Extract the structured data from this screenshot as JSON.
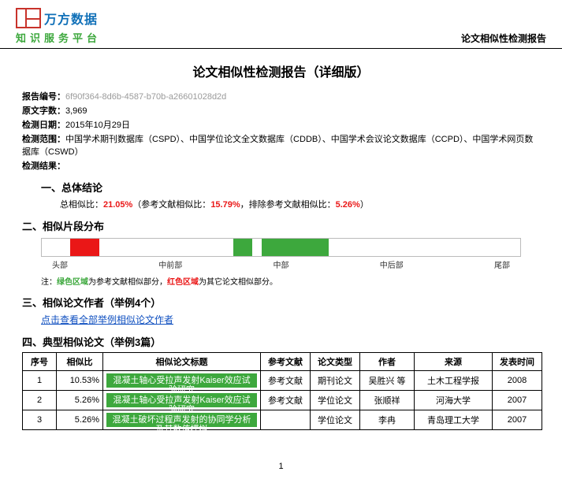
{
  "header": {
    "logo_main": "万方数据",
    "logo_sub": "知识服务平台",
    "right": "论文相似性检测报告"
  },
  "title": "论文相似性检测报告（详细版）",
  "meta": {
    "report_no_label": "报告编号：",
    "report_no": "6f90f364-8d6b-4587-b70b-a26601028d2d",
    "word_count_label": "原文字数：",
    "word_count": "3,969",
    "date_label": "检测日期：",
    "date": "2015年10月29日",
    "scope_label": "检测范围：",
    "scope": "中国学术期刊数据库（CSPD）、中国学位论文全文数据库（CDDB）、中国学术会议论文数据库（CCPD）、中国学术网页数据库（CSWD）",
    "result_label": "检测结果："
  },
  "sec1": {
    "title": "一、总体结论",
    "line_pre": "总相似比：",
    "total": "21.05%",
    "mid": "（参考文献相似比：",
    "ref": "15.79%",
    "mid2": "，排除参考文献相似比：",
    "excl": "5.26%",
    "end": "）"
  },
  "sec2": {
    "title": "二、相似片段分布",
    "labels": [
      "头部",
      "中前部",
      "中部",
      "中后部",
      "尾部"
    ],
    "segments": [
      {
        "w": 6,
        "color": "#ffffff"
      },
      {
        "w": 6,
        "color": "#ea1717"
      },
      {
        "w": 28,
        "color": "#ffffff"
      },
      {
        "w": 4,
        "color": "#3da83d"
      },
      {
        "w": 2,
        "color": "#ffffff"
      },
      {
        "w": 14,
        "color": "#3da83d"
      },
      {
        "w": 40,
        "color": "#ffffff"
      }
    ],
    "note_1": "注：",
    "note_g": "绿色区域",
    "note_2": "为参考文献相似部分，",
    "note_r": "红色区域",
    "note_3": "为其它论文相似部分。"
  },
  "sec3": {
    "title": "三、相似论文作者（举例4个）",
    "link": "点击查看全部举例相似论文作者"
  },
  "sec4": {
    "title": "四、典型相似论文（举例3篇）",
    "cols": [
      "序号",
      "相似比",
      "相似论文标题",
      "参考文献",
      "论文类型",
      "作者",
      "来源",
      "发表时间"
    ],
    "rows": [
      {
        "idx": "1",
        "ratio": "10.53%",
        "t": "混凝土轴心受拉声发射Kaiser效应试验研究",
        "ref": "参考文献",
        "type": "期刊论文",
        "author": "吴胜兴 等",
        "src": "土木工程学报",
        "year": "2008"
      },
      {
        "idx": "2",
        "ratio": "5.26%",
        "t": "混凝土轴心受拉声发射Kaiser效应试验研究",
        "ref": "参考文献",
        "type": "学位论文",
        "author": "张顺祥",
        "src": "河海大学",
        "year": "2007"
      },
      {
        "idx": "3",
        "ratio": "5.26%",
        "t": "混凝土破坏过程声发射的协同学分析及其数值模拟",
        "ref": "",
        "type": "学位论文",
        "author": "李冉",
        "src": "青岛理工大学",
        "year": "2007"
      }
    ]
  },
  "footer": "1"
}
